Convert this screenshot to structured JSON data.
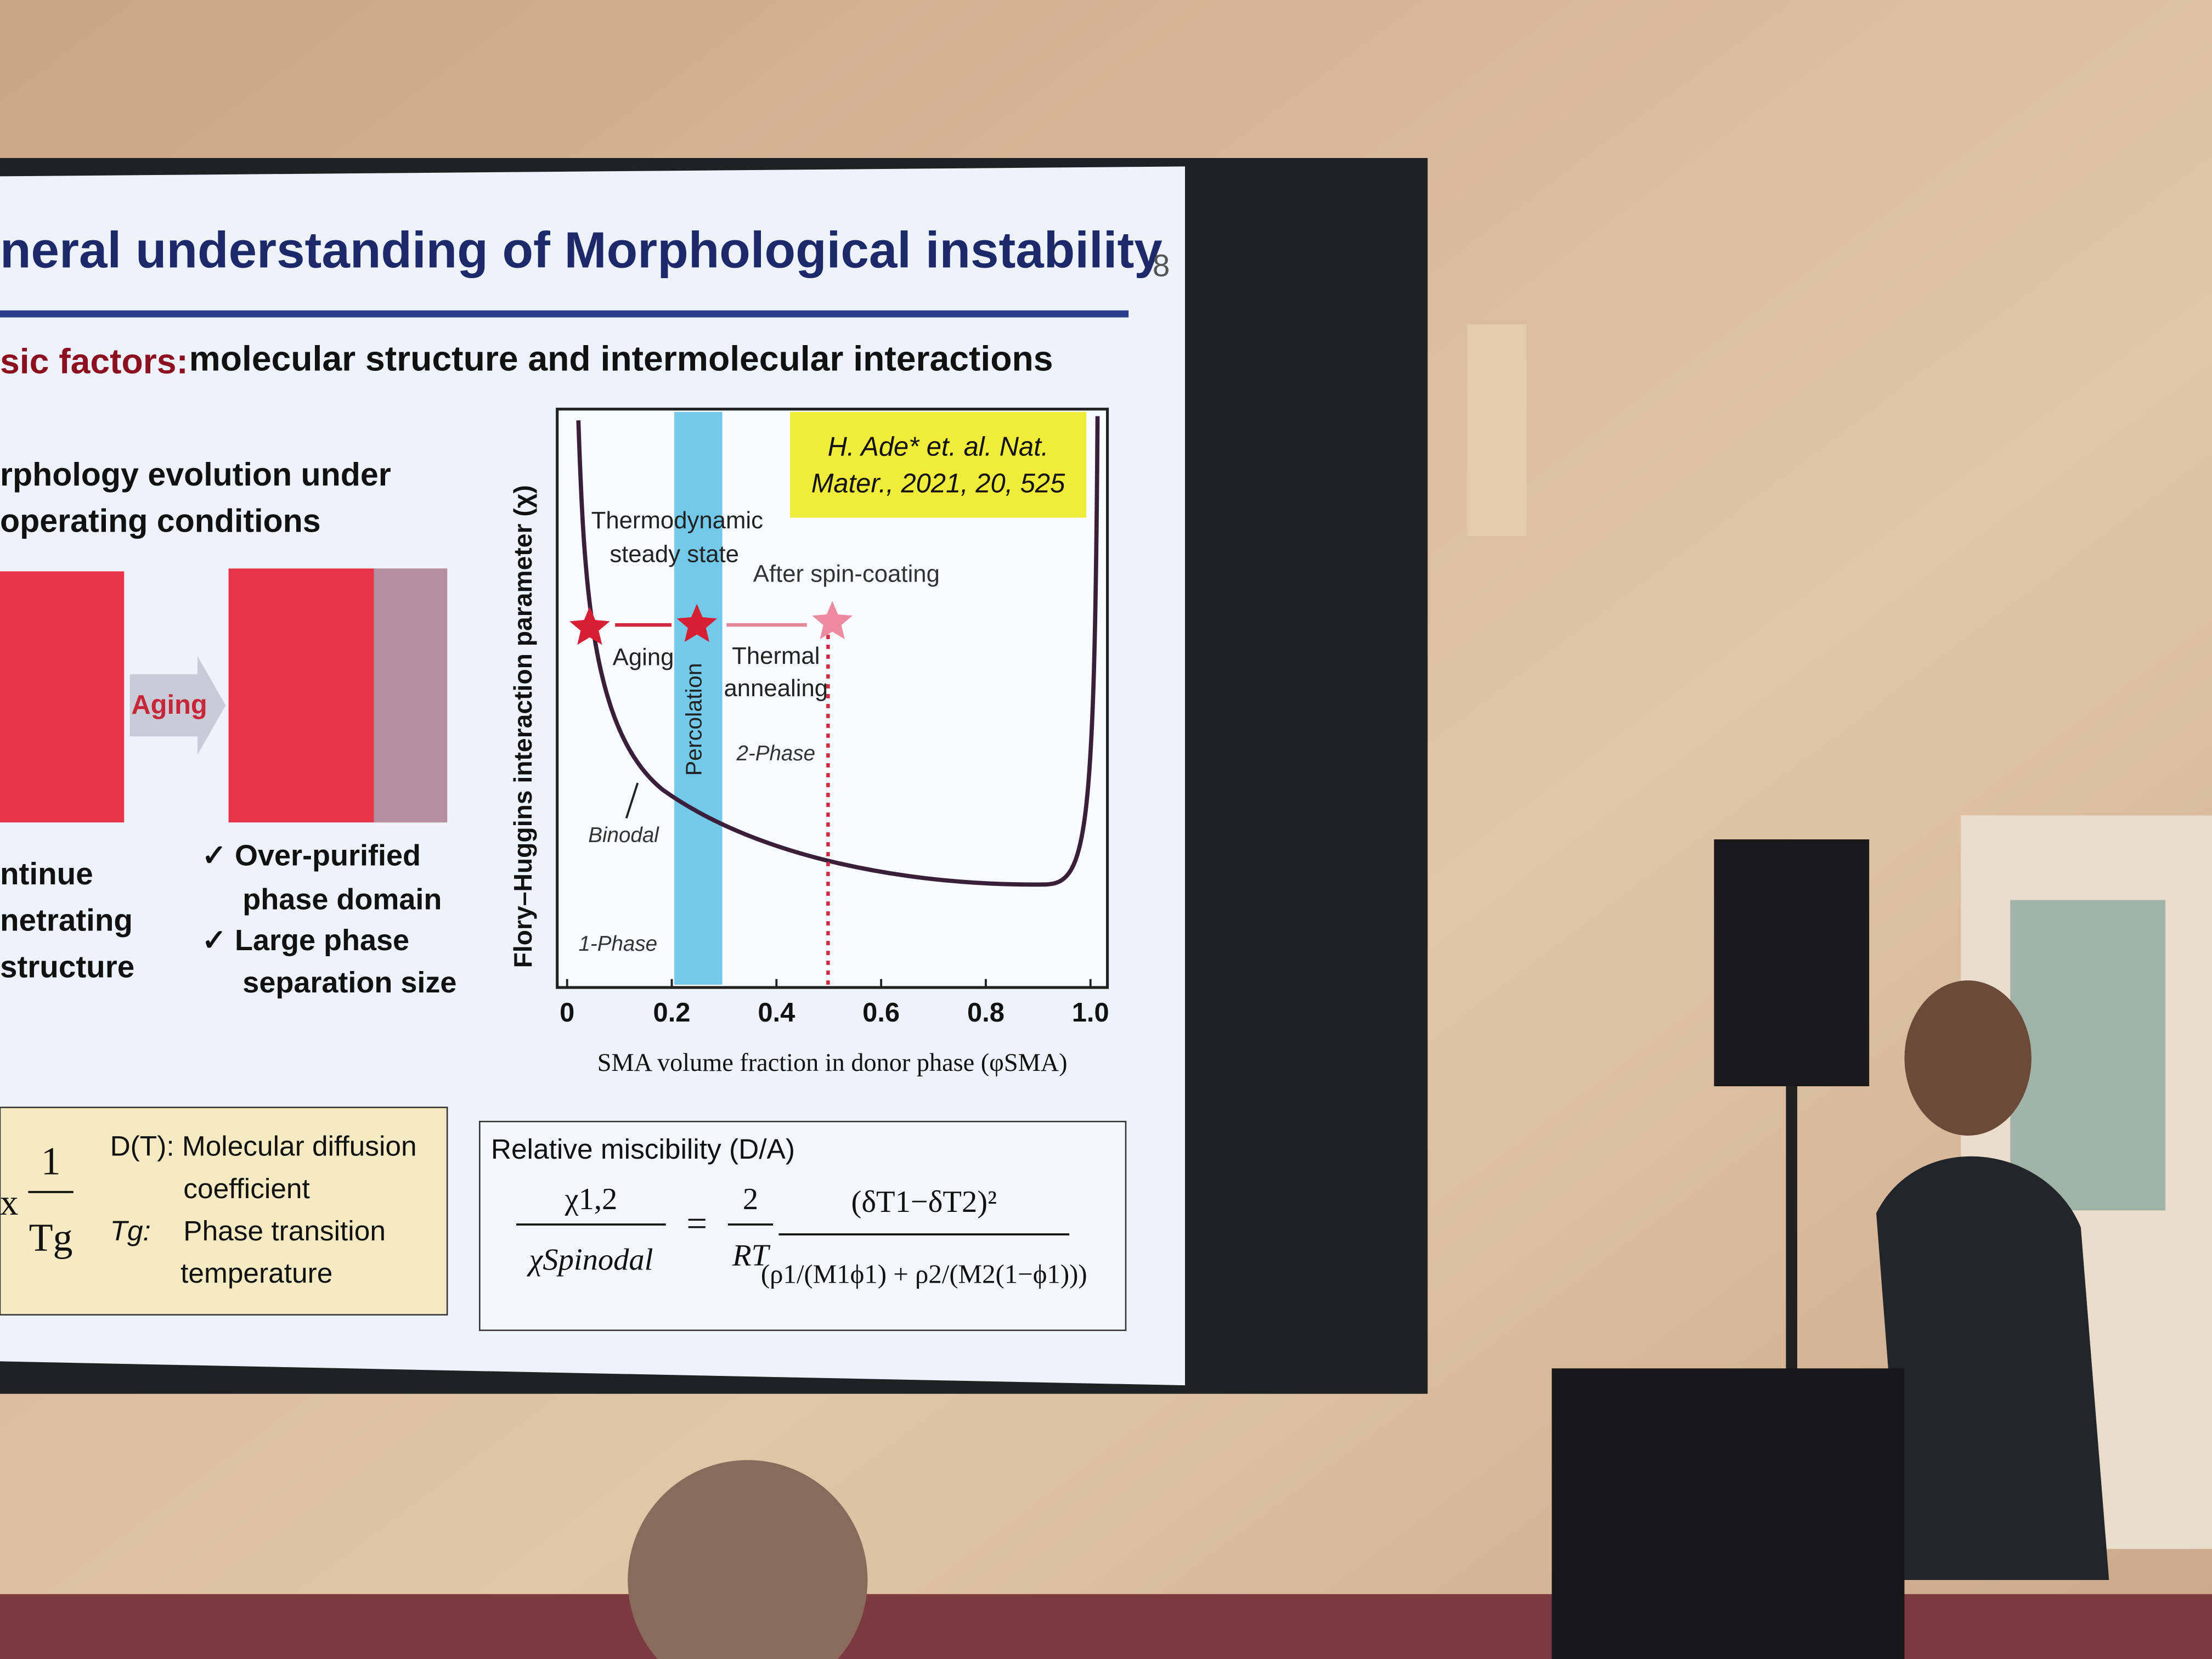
{
  "slide": {
    "title": "neral understanding of Morphological instability",
    "page_number": "8",
    "subtitle_emphasis": "sic factors:",
    "subtitle": "molecular structure and intermolecular interactions",
    "left_heading": [
      "rphology evolution under",
      "operating conditions"
    ],
    "arrow_label": "Aging",
    "left_points": [
      "ntinue",
      "netrating",
      "structure"
    ],
    "right_points": [
      "✓  Over-purified",
      "phase domain",
      "✓  Large phase",
      "separation size"
    ],
    "diffusion": {
      "prefix": "x",
      "frac_num": "1",
      "frac_den": "Tg",
      "d_label": "D(T): Molecular diffusion",
      "d_cont": "coefficient",
      "tg_label": "Tg:",
      "tg_text": "Phase transition",
      "tg_cont": "temperature"
    },
    "miscibility": {
      "title": "Relative miscibility  (D/A)",
      "lhs_num": "χ1,2",
      "lhs_den": "χSpinodal",
      "equals": "=",
      "coef_num": "2",
      "coef_den": "RT",
      "num": "(δT1−δT2)²",
      "den": "(ρ1/(M1ϕ1) + ρ2/(M2(1−ϕ1)))"
    }
  },
  "phase_diagram": {
    "y_label": "Flory–Huggins interaction parameter (χ)",
    "x_label": "SMA volume fraction in donor phase (φSMA)",
    "xlim": [
      0,
      1
    ],
    "xticks": [
      0,
      0.2,
      0.4,
      0.6,
      0.8,
      {
        "value": 1,
        "label": "1.0"
      }
    ],
    "reference": [
      "H. Ade* et. al. Nat.",
      "Mater., 2021, 20, 525"
    ],
    "annotations": {
      "steady": [
        "Thermodynamic",
        "steady state"
      ],
      "spin": "After spin-coating",
      "aging": "Aging",
      "thermal": [
        "Thermal",
        "annealing"
      ],
      "percolation": "Percolation",
      "two_phase": "2-Phase",
      "binodal": "Binodal",
      "one_phase": "1-Phase"
    }
  }
}
